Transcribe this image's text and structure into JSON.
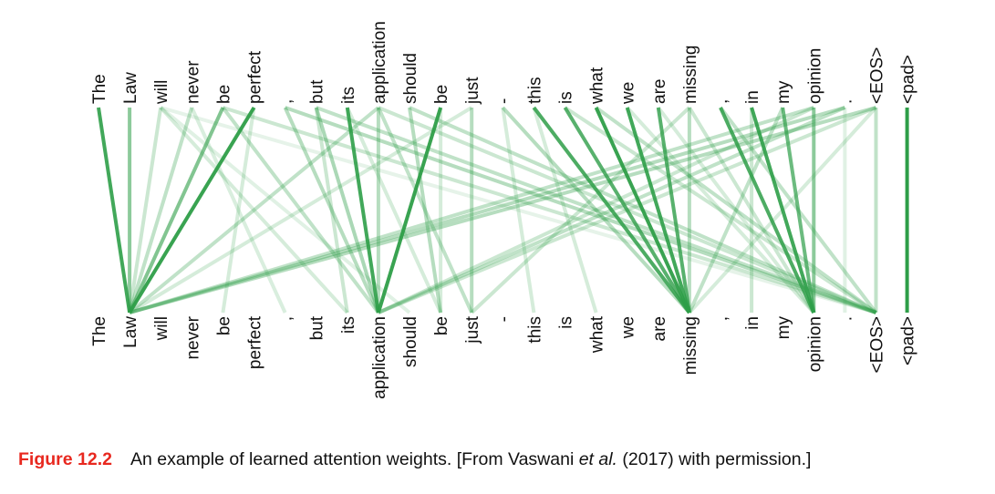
{
  "tokens": [
    "The",
    "Law",
    "will",
    "never",
    "be",
    "perfect",
    ",",
    "but",
    "its",
    "application",
    "should",
    "be",
    "just",
    "-",
    "this",
    "is",
    "what",
    "we",
    "are",
    "missing",
    ",",
    "in",
    "my",
    "opinion",
    ".",
    "<EOS>",
    "<pad>"
  ],
  "colors": {
    "line": "#2e9e48",
    "text": "#111111",
    "caption_label": "#e8281f"
  },
  "attention": [
    {
      "from": 0,
      "to": 1,
      "weight": 0.9
    },
    {
      "from": 1,
      "to": 1,
      "weight": 0.55
    },
    {
      "from": 2,
      "to": 1,
      "weight": 0.25
    },
    {
      "from": 2,
      "to": 8,
      "weight": 0.2
    },
    {
      "from": 2,
      "to": 10,
      "weight": 0.15
    },
    {
      "from": 2,
      "to": 25,
      "weight": 0.12
    },
    {
      "from": 3,
      "to": 1,
      "weight": 0.3
    },
    {
      "from": 3,
      "to": 6,
      "weight": 0.18
    },
    {
      "from": 4,
      "to": 1,
      "weight": 0.6
    },
    {
      "from": 4,
      "to": 9,
      "weight": 0.3
    },
    {
      "from": 4,
      "to": 25,
      "weight": 0.25
    },
    {
      "from": 5,
      "to": 1,
      "weight": 0.95
    },
    {
      "from": 5,
      "to": 4,
      "weight": 0.2
    },
    {
      "from": 6,
      "to": 9,
      "weight": 0.35
    },
    {
      "from": 6,
      "to": 25,
      "weight": 0.35
    },
    {
      "from": 7,
      "to": 9,
      "weight": 0.4
    },
    {
      "from": 7,
      "to": 8,
      "weight": 0.25
    },
    {
      "from": 7,
      "to": 25,
      "weight": 0.3
    },
    {
      "from": 8,
      "to": 9,
      "weight": 0.9
    },
    {
      "from": 8,
      "to": 11,
      "weight": 0.2
    },
    {
      "from": 9,
      "to": 1,
      "weight": 0.3
    },
    {
      "from": 9,
      "to": 9,
      "weight": 0.35
    },
    {
      "from": 9,
      "to": 12,
      "weight": 0.3
    },
    {
      "from": 9,
      "to": 25,
      "weight": 0.25
    },
    {
      "from": 10,
      "to": 11,
      "weight": 0.35
    },
    {
      "from": 10,
      "to": 25,
      "weight": 0.3
    },
    {
      "from": 11,
      "to": 9,
      "weight": 0.95
    },
    {
      "from": 11,
      "to": 11,
      "weight": 0.2
    },
    {
      "from": 12,
      "to": 12,
      "weight": 0.35
    },
    {
      "from": 12,
      "to": 1,
      "weight": 0.2
    },
    {
      "from": 13,
      "to": 19,
      "weight": 0.35
    },
    {
      "from": 13,
      "to": 14,
      "weight": 0.2
    },
    {
      "from": 14,
      "to": 19,
      "weight": 0.85
    },
    {
      "from": 14,
      "to": 16,
      "weight": 0.2
    },
    {
      "from": 15,
      "to": 19,
      "weight": 0.8
    },
    {
      "from": 15,
      "to": 25,
      "weight": 0.25
    },
    {
      "from": 16,
      "to": 19,
      "weight": 0.95
    },
    {
      "from": 16,
      "to": 25,
      "weight": 0.3
    },
    {
      "from": 17,
      "to": 19,
      "weight": 0.9
    },
    {
      "from": 17,
      "to": 23,
      "weight": 0.2
    },
    {
      "from": 18,
      "to": 19,
      "weight": 0.8
    },
    {
      "from": 18,
      "to": 23,
      "weight": 0.2
    },
    {
      "from": 19,
      "to": 19,
      "weight": 0.35
    },
    {
      "from": 19,
      "to": 12,
      "weight": 0.25
    },
    {
      "from": 19,
      "to": 23,
      "weight": 0.25
    },
    {
      "from": 20,
      "to": 23,
      "weight": 0.85
    },
    {
      "from": 20,
      "to": 25,
      "weight": 0.3
    },
    {
      "from": 21,
      "to": 23,
      "weight": 0.9
    },
    {
      "from": 21,
      "to": 21,
      "weight": 0.25
    },
    {
      "from": 22,
      "to": 23,
      "weight": 0.7
    },
    {
      "from": 22,
      "to": 19,
      "weight": 0.3
    },
    {
      "from": 23,
      "to": 23,
      "weight": 0.55
    },
    {
      "from": 23,
      "to": 1,
      "weight": 0.3
    },
    {
      "from": 23,
      "to": 9,
      "weight": 0.25
    },
    {
      "from": 24,
      "to": 1,
      "weight": 0.35
    },
    {
      "from": 24,
      "to": 9,
      "weight": 0.3
    },
    {
      "from": 24,
      "to": 24,
      "weight": 0.15
    },
    {
      "from": 25,
      "to": 25,
      "weight": 0.3
    },
    {
      "from": 25,
      "to": 1,
      "weight": 0.35
    },
    {
      "from": 25,
      "to": 9,
      "weight": 0.25
    },
    {
      "from": 25,
      "to": 19,
      "weight": 0.2
    },
    {
      "from": 26,
      "to": 26,
      "weight": 1.0
    }
  ],
  "caption": {
    "label": "Figure 12.2",
    "text_before": "An example of learned attention weights. [From Vaswani ",
    "text_italic": "et al.",
    "text_after": " (2017) with permission.]"
  }
}
